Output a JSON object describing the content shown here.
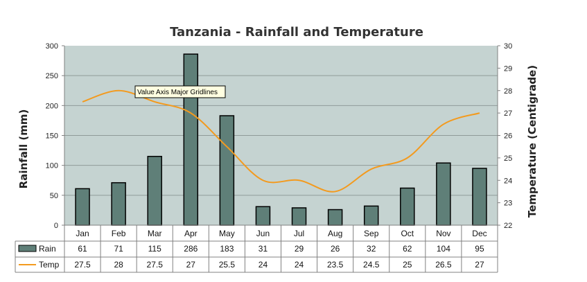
{
  "chart_data": {
    "type": "bar",
    "title": "Tanzania - Rainfall and Temperature",
    "ylabel": "Rainfall (mm)",
    "y2label": "Temperature (Centigrade)",
    "ylim": [
      0,
      300
    ],
    "y2lim": [
      22,
      30
    ],
    "yticks": [
      "0",
      "50",
      "100",
      "150",
      "200",
      "250",
      "300"
    ],
    "y2ticks": [
      "22",
      "23",
      "24",
      "25",
      "26",
      "27",
      "28",
      "29",
      "30"
    ],
    "categories": [
      "Jan",
      "Feb",
      "Mar",
      "Apr",
      "May",
      "Jun",
      "Jul",
      "Aug",
      "Sep",
      "Oct",
      "Nov",
      "Dec"
    ],
    "series": [
      {
        "name": "Rain",
        "type": "bar",
        "axis": "left",
        "values": [
          61,
          71,
          115,
          286,
          183,
          31,
          29,
          26,
          32,
          62,
          104,
          95
        ],
        "labels": [
          "61",
          "71",
          "115",
          "286",
          "183",
          "31",
          "29",
          "26",
          "32",
          "62",
          "104",
          "95"
        ]
      },
      {
        "name": "Temp",
        "type": "line",
        "axis": "right",
        "values": [
          27.5,
          28,
          27.5,
          27,
          25.5,
          24,
          24,
          23.5,
          24.5,
          25,
          26.5,
          27
        ],
        "labels": [
          "27.5",
          "28",
          "27.5",
          "27",
          "25.5",
          "24",
          "24",
          "23.5",
          "24.5",
          "25",
          "26.5",
          "27"
        ]
      }
    ],
    "grid": true,
    "legend": "data-table-below"
  },
  "tooltip": "Value Axis Major Gridlines",
  "colors": {
    "plot_bg": "#c5d3d1",
    "bar_fill": "#5f7f78",
    "bar_stroke": "#000000",
    "line": "#f39a1e",
    "grid": "#8f9a98",
    "axis": "#808080"
  }
}
